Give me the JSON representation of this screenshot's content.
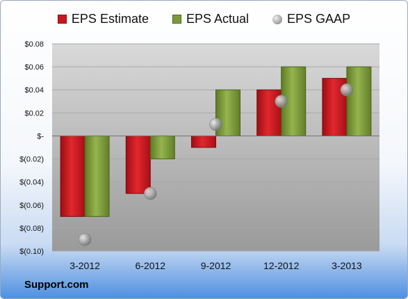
{
  "brand": "Support.com",
  "chart_data": {
    "type": "bar",
    "categories": [
      "3-2012",
      "6-2012",
      "9-2012",
      "12-2012",
      "3-2013"
    ],
    "series": [
      {
        "name": "EPS Estimate",
        "values": [
          -0.07,
          -0.05,
          -0.01,
          0.04,
          0.05
        ],
        "color": "#c8161e"
      },
      {
        "name": "EPS Actual",
        "values": [
          -0.07,
          -0.02,
          0.04,
          0.06,
          0.06
        ],
        "color": "#7a9a3a"
      },
      {
        "name": "EPS GAAP",
        "values": [
          -0.09,
          -0.05,
          0.01,
          0.03,
          0.04
        ],
        "color": "#a6a6a6",
        "marker": "sphere"
      }
    ],
    "yticks": [
      "$0.08",
      "$0.06",
      "$0.04",
      "$0.02",
      "$-",
      "$(0.02)",
      "$(0.04)",
      "$(0.06)",
      "$(0.08)",
      "$(0.10)"
    ],
    "ylim": [
      -0.1,
      0.08
    ],
    "grid": true,
    "legend": "top-center"
  }
}
